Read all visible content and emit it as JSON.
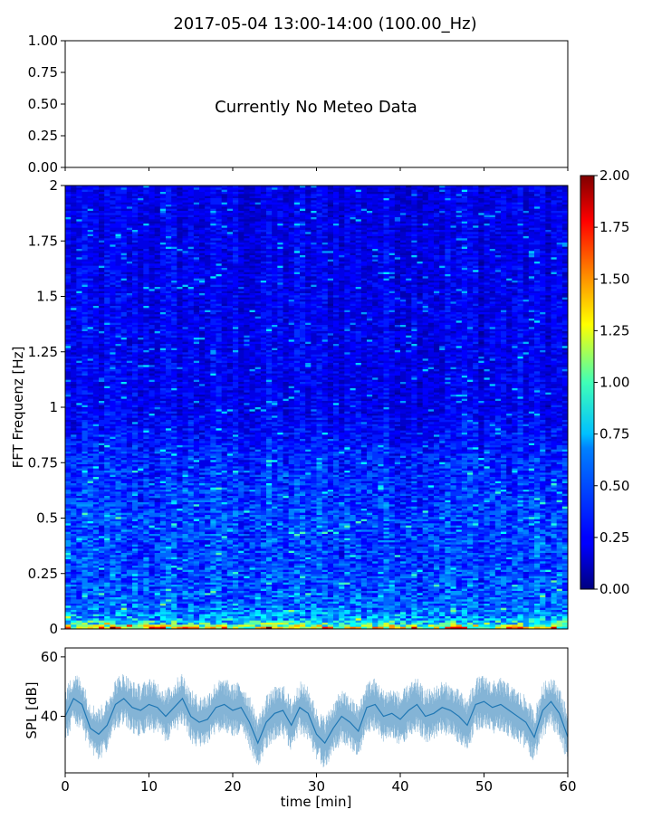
{
  "title": "2017-05-04 13:00-14:00 (100.00_Hz)",
  "meteo": {
    "message": "Currently No Meteo Data",
    "ylim": [
      0,
      1
    ],
    "yticks": [
      "0.00",
      "0.25",
      "0.50",
      "0.75",
      "1.00"
    ]
  },
  "chart_data": [
    {
      "type": "line",
      "panel": "meteo",
      "title": "2017-05-04 13:00-14:00 (100.00_Hz)",
      "annotation": "Currently No Meteo Data",
      "ylim": [
        0,
        1
      ],
      "series": []
    },
    {
      "type": "heatmap",
      "panel": "spectrogram",
      "ylabel": "FFT Frequenz [Hz]",
      "xlim": [
        0,
        60
      ],
      "ylim": [
        0,
        2
      ],
      "yticks": [
        "0",
        "0.25",
        "0.5",
        "0.75",
        "1",
        "1.25",
        "1.5",
        "1.75",
        "2"
      ],
      "colorbar": {
        "range": [
          0,
          2
        ],
        "colormap": "jet",
        "ticks": [
          "0.00",
          "0.25",
          "0.50",
          "0.75",
          "1.00",
          "1.25",
          "1.50",
          "1.75",
          "2.00"
        ]
      },
      "frequency_profile": {
        "freq_hz": [
          0.0,
          0.02,
          0.05,
          0.1,
          0.25,
          0.5,
          0.75,
          1.0,
          1.5,
          2.0
        ],
        "typical_value": [
          1.4,
          0.85,
          0.55,
          0.45,
          0.38,
          0.38,
          0.32,
          0.22,
          0.22,
          0.2
        ]
      }
    },
    {
      "type": "line",
      "panel": "spl",
      "xlabel": "time [min]",
      "ylabel": "SPL [dB]",
      "xlim": [
        0,
        60
      ],
      "ylim": [
        21,
        63
      ],
      "xticks": [
        "0",
        "10",
        "20",
        "30",
        "40",
        "50",
        "60"
      ],
      "yticks": [
        "40",
        "60"
      ],
      "color": "#1f77b4",
      "series": [
        {
          "x": [
            0,
            1,
            2,
            3,
            4,
            5,
            6,
            7,
            8,
            9,
            10,
            11,
            12,
            13,
            14,
            15,
            16,
            17,
            18,
            19,
            20,
            21,
            22,
            23,
            24,
            25,
            26,
            27,
            28,
            29,
            30,
            31,
            32,
            33,
            34,
            35,
            36,
            37,
            38,
            39,
            40,
            41,
            42,
            43,
            44,
            45,
            46,
            47,
            48,
            49,
            50,
            51,
            52,
            53,
            54,
            55,
            56,
            57,
            58,
            59,
            60
          ],
          "y": [
            40,
            46,
            44,
            36,
            34,
            37,
            44,
            46,
            43,
            42,
            44,
            43,
            40,
            43,
            46,
            40,
            38,
            39,
            43,
            44,
            42,
            43,
            38,
            31,
            38,
            41,
            42,
            37,
            43,
            41,
            34,
            31,
            36,
            40,
            38,
            35,
            43,
            44,
            40,
            41,
            39,
            42,
            44,
            40,
            41,
            43,
            42,
            40,
            37,
            44,
            45,
            43,
            44,
            42,
            40,
            38,
            33,
            42,
            45,
            41,
            33
          ]
        }
      ]
    }
  ]
}
